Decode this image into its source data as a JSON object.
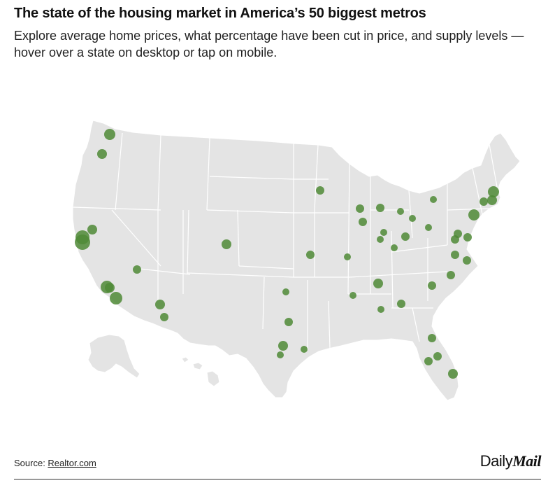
{
  "header": {
    "title": "The state of the housing market in America’s 50 biggest metros",
    "subtitle": "Explore average home prices, what percentage have been cut in price, and supply levels — hover over a state on desktop or tap on mobile."
  },
  "footer": {
    "source_prefix": "Source: ",
    "source_link": "Realtor.com",
    "brand_daily": "Daily",
    "brand_mail": "Mail"
  },
  "colors": {
    "land": "#e4e4e4",
    "state_border": "#ffffff",
    "marker": "#4f8a36",
    "marker_opacity": "0.85"
  },
  "map": {
    "region": "United States (contiguous, Alaska, Hawaii)",
    "marker_icon": "circle-marker-icon"
  }
}
